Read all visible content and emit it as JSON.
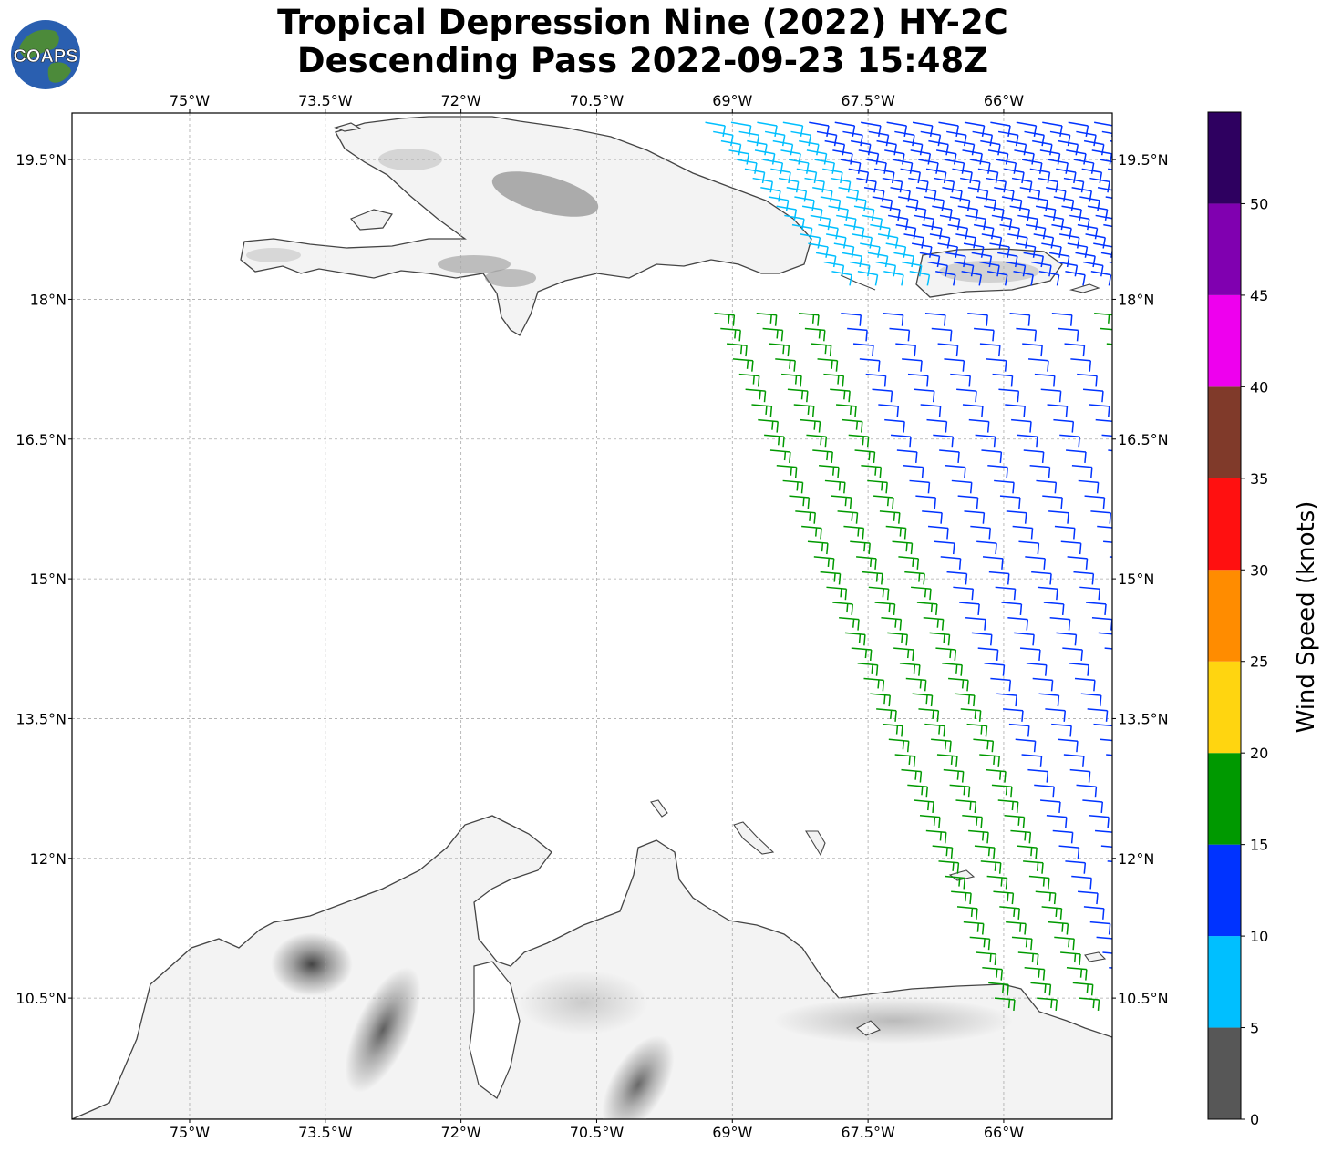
{
  "title": {
    "line1": "Tropical Depression Nine (2022) HY-2C",
    "line2": "Descending Pass 2022-09-23 15:48Z"
  },
  "logo": {
    "text": "COAPS"
  },
  "map": {
    "lon_range": [
      -76.3,
      -64.8
    ],
    "lat_range": [
      9.2,
      20.0
    ],
    "lon_ticks": [
      {
        "value": -75,
        "label": "75°W"
      },
      {
        "value": -73.5,
        "label": "73.5°W"
      },
      {
        "value": -72,
        "label": "72°W"
      },
      {
        "value": -70.5,
        "label": "70.5°W"
      },
      {
        "value": -69,
        "label": "69°W"
      },
      {
        "value": -67.5,
        "label": "67.5°W"
      },
      {
        "value": -66,
        "label": "66°W"
      }
    ],
    "lat_ticks": [
      {
        "value": 19.5,
        "label": "19.5°N"
      },
      {
        "value": 18,
        "label": "18°N"
      },
      {
        "value": 16.5,
        "label": "16.5°N"
      },
      {
        "value": 15,
        "label": "15°N"
      },
      {
        "value": 13.5,
        "label": "13.5°N"
      },
      {
        "value": 12,
        "label": "12°N"
      },
      {
        "value": 10.5,
        "label": "10.5°N"
      }
    ]
  },
  "colorbar": {
    "label": "Wind Speed (knots)",
    "ticks": [
      "0",
      "5",
      "10",
      "15",
      "20",
      "25",
      "30",
      "35",
      "40",
      "45",
      "50"
    ],
    "bins": [
      {
        "min": 0,
        "max": 5,
        "color": "#575757"
      },
      {
        "min": 5,
        "max": 10,
        "color": "#00bfff"
      },
      {
        "min": 10,
        "max": 15,
        "color": "#0033ff"
      },
      {
        "min": 15,
        "max": 20,
        "color": "#009900"
      },
      {
        "min": 20,
        "max": 25,
        "color": "#ffd510"
      },
      {
        "min": 25,
        "max": 30,
        "color": "#ff8c00"
      },
      {
        "min": 30,
        "max": 35,
        "color": "#ff1010"
      },
      {
        "min": 35,
        "max": 40,
        "color": "#803a2a"
      },
      {
        "min": 40,
        "max": 45,
        "color": "#ee00ee"
      },
      {
        "min": 45,
        "max": 50,
        "color": "#8000b0"
      },
      {
        "min": 50,
        "max": 55,
        "color": "#2e0060"
      }
    ]
  },
  "wind_swaths": [
    {
      "name": "north",
      "start": [
        -69.3,
        19.9
      ],
      "end": [
        -67.9,
        18.3
      ],
      "cross_end": [
        -65.0,
        19.9
      ],
      "rows": 17,
      "cols": 16,
      "speeds": [
        7,
        12,
        12,
        12
      ],
      "direction_deg": 100
    },
    {
      "name": "south",
      "start": [
        -69.2,
        17.85
      ],
      "end": [
        -66.1,
        10.5
      ],
      "cross_end": [
        -65.0,
        17.85
      ],
      "rows": 46,
      "cols": 10,
      "speeds": [
        17,
        17,
        17,
        12,
        12,
        12,
        12,
        12,
        12,
        17
      ],
      "direction_deg": 95
    }
  ]
}
